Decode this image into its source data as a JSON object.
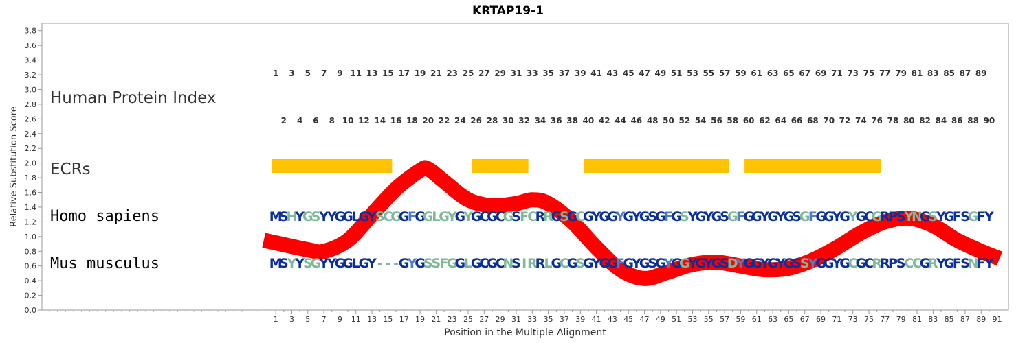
{
  "chart_data": {
    "type": "line",
    "title": "KRTAP19-1",
    "xlabel": "Position in the Multiple Alignment",
    "ylabel": "Relative Substitution Score",
    "xlim": [
      0,
      91
    ],
    "ylim": [
      0,
      3.9
    ],
    "y_ticks": [
      "0.0",
      "0.2",
      "0.4",
      "0.6",
      "0.8",
      "1.0",
      "1.2",
      "1.4",
      "1.6",
      "1.8",
      "2.0",
      "2.2",
      "2.4",
      "2.6",
      "2.8",
      "3.0",
      "3.2",
      "3.4",
      "3.6",
      "3.8"
    ],
    "x_ticks": [
      "1",
      "3",
      "5",
      "7",
      "9",
      "11",
      "13",
      "15",
      "17",
      "19",
      "21",
      "23",
      "25",
      "27",
      "29",
      "31",
      "33",
      "35",
      "37",
      "39",
      "41",
      "43",
      "45",
      "47",
      "49",
      "51",
      "53",
      "55",
      "57",
      "59",
      "61",
      "63",
      "65",
      "67",
      "69",
      "71",
      "73",
      "75",
      "77",
      "79",
      "81",
      "83",
      "85",
      "87",
      "89",
      "91"
    ],
    "grid": false,
    "line_color": "#ff0000",
    "score_line": [
      [
        -0.5,
        0.95
      ],
      [
        5,
        0.82
      ],
      [
        7,
        0.8
      ],
      [
        10,
        0.95
      ],
      [
        13,
        1.3
      ],
      [
        16,
        1.65
      ],
      [
        19,
        1.9
      ],
      [
        20,
        1.92
      ],
      [
        22,
        1.75
      ],
      [
        25,
        1.5
      ],
      [
        28,
        1.42
      ],
      [
        31,
        1.45
      ],
      [
        33,
        1.5
      ],
      [
        35,
        1.45
      ],
      [
        38,
        1.2
      ],
      [
        41,
        0.85
      ],
      [
        44,
        0.55
      ],
      [
        47,
        0.43
      ],
      [
        50,
        0.52
      ],
      [
        53,
        0.62
      ],
      [
        56,
        0.65
      ],
      [
        59,
        0.6
      ],
      [
        62,
        0.55
      ],
      [
        65,
        0.57
      ],
      [
        68,
        0.68
      ],
      [
        71,
        0.85
      ],
      [
        74,
        1.05
      ],
      [
        77,
        1.2
      ],
      [
        80,
        1.25
      ],
      [
        83,
        1.15
      ],
      [
        86,
        0.95
      ],
      [
        89,
        0.8
      ],
      [
        91.3,
        0.7
      ]
    ],
    "ecr_color": "#ffc300",
    "ecrs": [
      [
        1,
        15
      ],
      [
        26,
        32
      ],
      [
        40,
        57
      ],
      [
        60,
        76
      ]
    ],
    "rows": {
      "index_label": "Human Protein Index",
      "ecr_label": "ECRs",
      "homo_label": "Homo sapiens",
      "mus_label": "Mus musculus"
    },
    "index_odd": [
      "1",
      "3",
      "5",
      "7",
      "9",
      "11",
      "13",
      "15",
      "17",
      "19",
      "21",
      "23",
      "25",
      "27",
      "29",
      "31",
      "33",
      "35",
      "37",
      "39",
      "41",
      "43",
      "45",
      "47",
      "49",
      "51",
      "53",
      "55",
      "57",
      "59",
      "61",
      "63",
      "65",
      "67",
      "69",
      "71",
      "73",
      "75",
      "77",
      "79",
      "81",
      "83",
      "85",
      "87",
      "89"
    ],
    "index_even": [
      "2",
      "4",
      "6",
      "8",
      "10",
      "12",
      "14",
      "16",
      "18",
      "20",
      "22",
      "24",
      "26",
      "28",
      "30",
      "32",
      "34",
      "36",
      "38",
      "40",
      "42",
      "44",
      "46",
      "48",
      "50",
      "52",
      "54",
      "56",
      "58",
      "60",
      "62",
      "64",
      "66",
      "68",
      "70",
      "72",
      "74",
      "76",
      "78",
      "80",
      "82",
      "84",
      "86",
      "88",
      "90"
    ],
    "homo_sequence": "MSHYGSYYGGLGYSCGGFGGLGYGYGCGCGSFCRRGSGCGYGGYGYGSGFGSYGYGSGFGGYGYGSGFGGYGYGCGRPSYNGSYGFSGFY",
    "mus_sequence": "MSYYSGYYGGLGY---GYGSSFGGLGCGCNSIRRLGCGSGYGGFGYGSGYGGYGYGSDYGGYGYGSSYGGYGCGCRRPSCCGRYGFSNFY",
    "residue_colors": {
      "conserved": "#0a2f9a",
      "similar": "#4f7dc4",
      "variable": "#7fb898"
    }
  }
}
